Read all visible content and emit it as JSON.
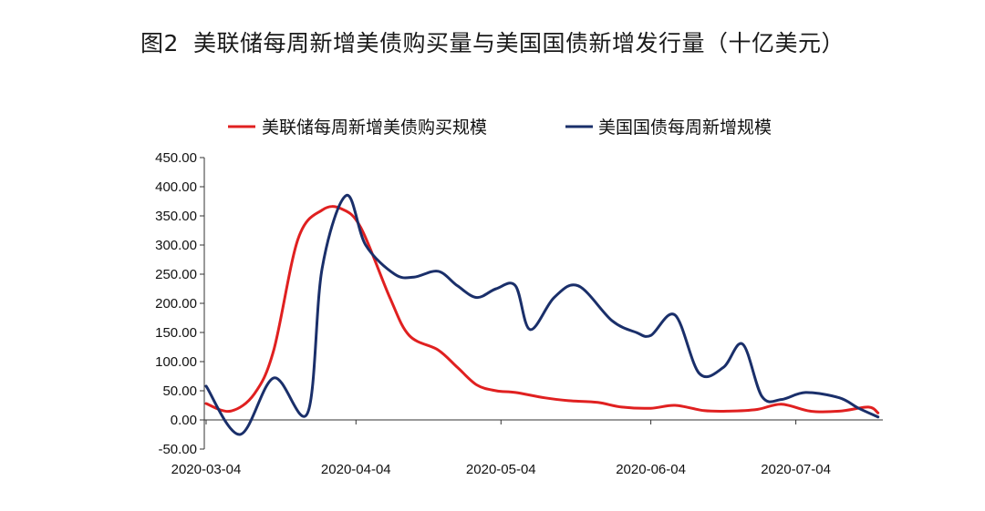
{
  "figure": {
    "number": "图2",
    "title": "美联储每周新增美债购买量与美国国债新增发行量（十亿美元）"
  },
  "chart_data": {
    "type": "line",
    "title": "美联储每周新增美债购买量与美国国债新增发行量（十亿美元）",
    "ylim": [
      -50,
      450
    ],
    "y_ticks": [
      "450.00",
      "400.00",
      "350.00",
      "300.00",
      "250.00",
      "200.00",
      "150.00",
      "100.00",
      "50.00",
      "0.00",
      "-50.00"
    ],
    "y_tick_values": [
      450,
      400,
      350,
      300,
      250,
      200,
      150,
      100,
      50,
      0,
      -50
    ],
    "x_ticks": [
      "2020-03-04",
      "2020-04-04",
      "2020-05-04",
      "2020-06-04",
      "2020-07-04"
    ],
    "x_tick_days": [
      0,
      31,
      61,
      92,
      122
    ],
    "legend_position": "top",
    "grid": false,
    "series": [
      {
        "name": "美联储每周新增美债购买规模",
        "color": "#e02020",
        "x": [
          0,
          5,
          10,
          14,
          19,
          24,
          28,
          32,
          38,
          42,
          48,
          52,
          56,
          60,
          64,
          70,
          75,
          81,
          86,
          92,
          97,
          103,
          108,
          114,
          119,
          125,
          131,
          137,
          139
        ],
        "values": [
          28,
          15,
          45,
          120,
          310,
          360,
          362,
          330,
          210,
          145,
          120,
          90,
          60,
          50,
          47,
          38,
          33,
          30,
          22,
          20,
          25,
          16,
          15,
          18,
          27,
          15,
          15,
          22,
          12
        ]
      },
      {
        "name": "美国国债每周新增规模",
        "color": "#1a2f6a",
        "x": [
          0,
          7,
          14,
          21,
          24,
          29,
          33,
          39,
          43,
          48,
          52,
          56,
          60,
          64,
          67,
          72,
          77,
          84,
          89,
          92,
          97,
          102,
          107,
          111,
          115,
          119,
          124,
          131,
          135,
          139
        ],
        "values": [
          58,
          -25,
          72,
          12,
          260,
          385,
          300,
          250,
          245,
          255,
          230,
          210,
          225,
          230,
          155,
          210,
          230,
          170,
          150,
          145,
          180,
          80,
          90,
          130,
          40,
          35,
          47,
          38,
          20,
          5
        ]
      }
    ]
  }
}
